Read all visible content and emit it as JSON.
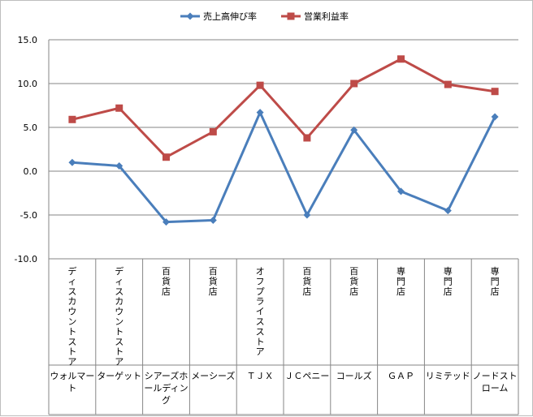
{
  "chart_data": {
    "type": "line",
    "title": "",
    "xlabel": "",
    "ylabel": "",
    "ylim": [
      -10,
      15
    ],
    "yticks": [
      "15.0",
      "10.0",
      "5.0",
      "0.0",
      "-5.0",
      "-10.0"
    ],
    "grid": true,
    "legend_position": "top",
    "categories": [
      {
        "type": "ディスカウントストア",
        "name": "ウォルマート"
      },
      {
        "type": "ディスカウントストア",
        "name": "ターゲット"
      },
      {
        "type": "百貨店",
        "name": "シアーズホールディング"
      },
      {
        "type": "百貨店",
        "name": "メーシーズ"
      },
      {
        "type": "オフプライスストア",
        "name": "ＴＪＸ"
      },
      {
        "type": "百貨店",
        "name": "ＪＣペニー"
      },
      {
        "type": "百貨店",
        "name": "コールズ"
      },
      {
        "type": "専門店",
        "name": "ＧＡＰ"
      },
      {
        "type": "専門店",
        "name": "リミテッド"
      },
      {
        "type": "専門店",
        "name": "ノードストローム"
      }
    ],
    "series": [
      {
        "name": "売上高伸び率",
        "color": "#4a7ebb",
        "marker": "diamond",
        "values": [
          1.0,
          0.6,
          -5.8,
          -5.6,
          6.7,
          -5.0,
          4.7,
          -2.3,
          -4.5,
          6.2
        ]
      },
      {
        "name": "営業利益率",
        "color": "#be4b48",
        "marker": "square",
        "values": [
          5.9,
          7.2,
          1.6,
          4.5,
          9.8,
          3.8,
          10.0,
          12.8,
          9.9,
          9.1
        ]
      }
    ]
  }
}
